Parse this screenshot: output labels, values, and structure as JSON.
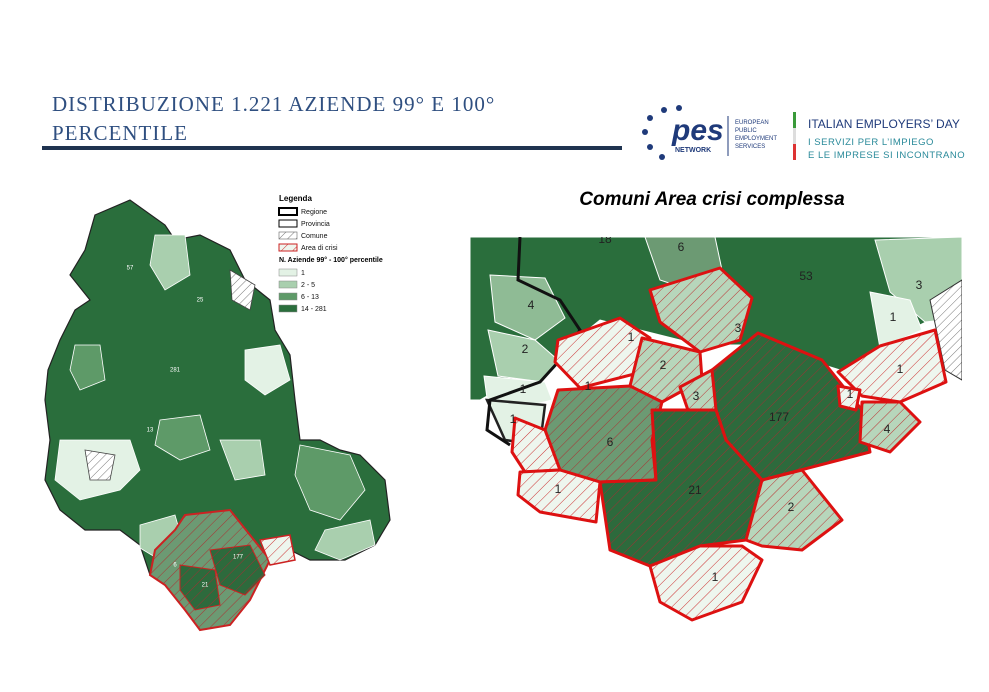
{
  "header": {
    "title": "DISTRIBUZIONE 1.221 AZIENDE  99° E 100° PERCENTILE"
  },
  "logo": {
    "pes": "pes",
    "network": "NETWORK",
    "subtitle_lines": [
      "EUROPEAN",
      "PUBLIC",
      "EMPLOYMENT",
      "SERVICES"
    ],
    "event": "ITALIAN EMPLOYERS’ DAY",
    "tagline_lines": [
      "I SERVIZI PER L’IMPIEGO",
      "E LE IMPRESE SI INCONTRANO"
    ]
  },
  "legend": {
    "title": "Legenda",
    "boundaries": [
      "Regione",
      "Provincia",
      "Comune",
      "Area di crisi"
    ],
    "classes_title": "N. Aziende 99° - 100° percentile",
    "classes": [
      "1",
      "2 - 5",
      "6 - 13",
      "14 - 281"
    ]
  },
  "region_map": {
    "labels": [
      "57",
      "25",
      "281",
      "177",
      "21",
      "6",
      "13"
    ]
  },
  "zoom_map": {
    "title": "Comuni Area crisi complessa",
    "labels": [
      "18",
      "6",
      "53",
      "4",
      "2",
      "1",
      "1",
      "1",
      "2",
      "3",
      "1",
      "3",
      "1",
      "1",
      "177",
      "1",
      "4",
      "6",
      "21",
      "1",
      "2",
      "1",
      "3"
    ]
  }
}
